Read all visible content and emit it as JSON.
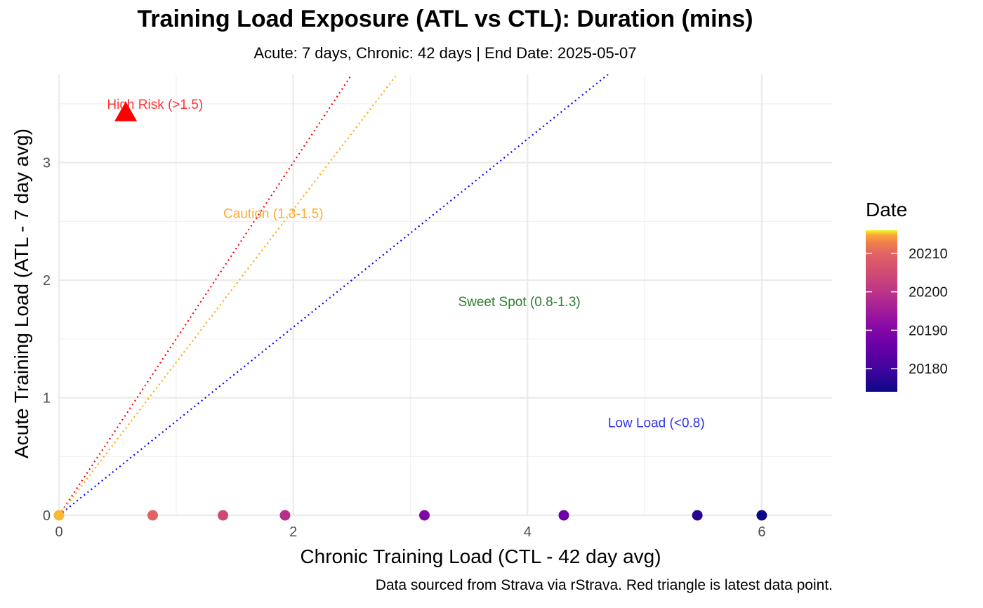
{
  "chart_data": {
    "type": "scatter",
    "title": "Training Load Exposure (ATL vs CTL): Duration (mins)",
    "subtitle": "Acute: 7 days, Chronic: 42 days | End Date: 2025-05-07",
    "caption": "Data sourced from Strava via rStrava. Red triangle is latest data point.",
    "xlabel": "Chronic Training Load (CTL - 42 day avg)",
    "ylabel": "Acute Training Load (ATL - 7 day avg)",
    "xlim": [
      0,
      6.6
    ],
    "ylim": [
      0,
      3.75
    ],
    "x_ticks": [
      0,
      2,
      4,
      6
    ],
    "y_ticks": [
      0,
      1,
      2,
      3
    ],
    "grid": true,
    "ratio_lines": [
      {
        "ratio": 1.5,
        "color": "#ff0000"
      },
      {
        "ratio": 1.3,
        "color": "#ffa500"
      },
      {
        "ratio": 0.8,
        "color": "#0000ff"
      }
    ],
    "zone_labels": [
      {
        "text": "High Risk (>1.5)",
        "x": 0.82,
        "y": 3.5,
        "color": "#ff3333"
      },
      {
        "text": "Caution (1.3-1.5)",
        "x": 1.83,
        "y": 2.57,
        "color": "#ffaa33"
      },
      {
        "text": "Sweet Spot (0.8-1.3)",
        "x": 3.93,
        "y": 1.82,
        "color": "#2f7f2f"
      },
      {
        "text": "Low Load (<0.8)",
        "x": 5.1,
        "y": 0.79,
        "color": "#3333ee"
      }
    ],
    "points": [
      {
        "x": 0.0,
        "y": 0.0,
        "date": 20215
      },
      {
        "x": 0.8,
        "y": 0.0,
        "date": 20210
      },
      {
        "x": 1.4,
        "y": 0.0,
        "date": 20204
      },
      {
        "x": 1.93,
        "y": 0.0,
        "date": 20199
      },
      {
        "x": 3.12,
        "y": 0.0,
        "date": 20190
      },
      {
        "x": 4.31,
        "y": 0.0,
        "date": 20187
      },
      {
        "x": 5.45,
        "y": 0.0,
        "date": 20177
      },
      {
        "x": 6.0,
        "y": 0.0,
        "date": 20174
      }
    ],
    "latest_point": {
      "x": 0.57,
      "y": 3.43,
      "color": "#ff0000",
      "shape": "triangle"
    },
    "legend": {
      "title": "Date",
      "position": "right",
      "ticks": [
        20180,
        20190,
        20200,
        20210
      ],
      "range": [
        20174,
        20216
      ]
    }
  }
}
